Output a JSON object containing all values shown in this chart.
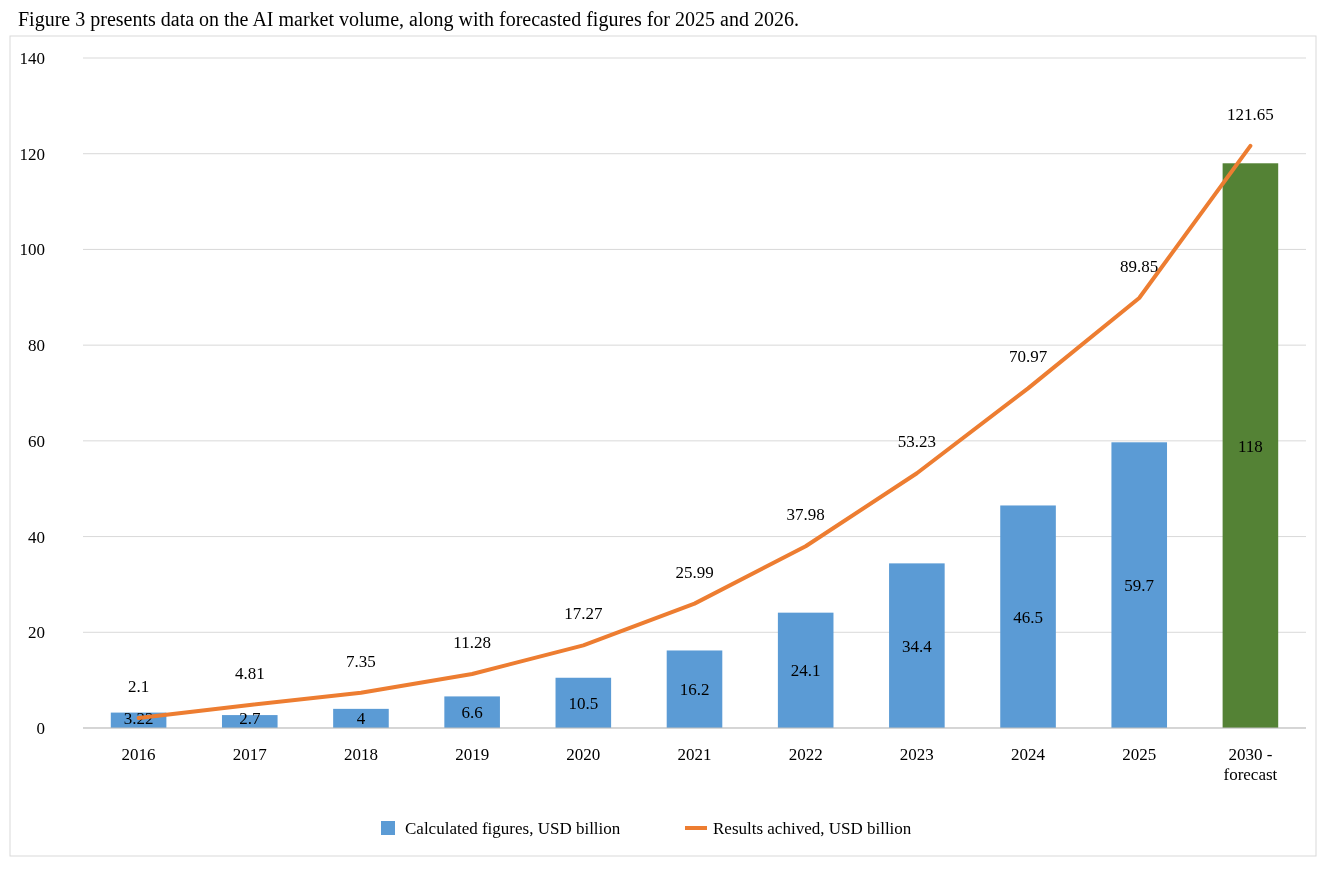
{
  "chart_data": {
    "type": "bar",
    "title": "Figure 3 presents data on the AI market volume, along with forecasted figures for 2025 and 2026.",
    "categories": [
      "2016",
      "2017",
      "2018",
      "2019",
      "2020",
      "2021",
      "2022",
      "2023",
      "2024",
      "2025",
      "2030 - forecast"
    ],
    "series": [
      {
        "name": "Calculated figures, USD billion",
        "color": "#5b9bd5",
        "colors": [
          "#5b9bd5",
          "#5b9bd5",
          "#5b9bd5",
          "#5b9bd5",
          "#5b9bd5",
          "#5b9bd5",
          "#5b9bd5",
          "#5b9bd5",
          "#5b9bd5",
          "#5b9bd5",
          "#548235"
        ],
        "values": [
          3.22,
          2.7,
          4,
          6.6,
          10.5,
          16.2,
          24.1,
          34.4,
          46.5,
          59.7,
          118
        ]
      },
      {
        "name": "Results achived, USD billion",
        "type": "line",
        "color": "#ed7d31",
        "values": [
          2.1,
          4.81,
          7.35,
          11.28,
          17.27,
          25.99,
          37.98,
          53.23,
          70.97,
          89.85,
          121.65
        ]
      }
    ],
    "data_labels": true,
    "ylim": [
      0,
      140
    ],
    "yticks": [
      0,
      20,
      40,
      60,
      80,
      100,
      120,
      140
    ],
    "grid": "y",
    "legend": "bottom",
    "marker": "none"
  }
}
